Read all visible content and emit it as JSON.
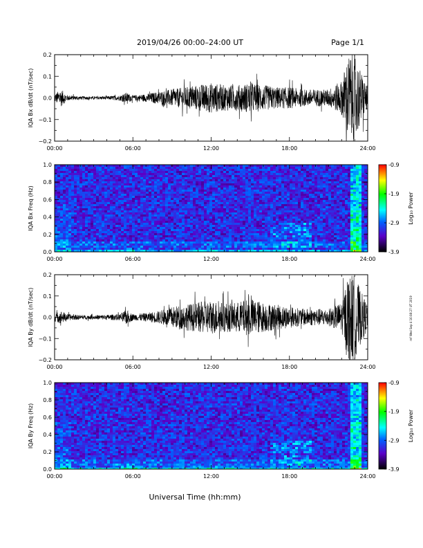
{
  "header": {
    "title": "2019/04/26  00:00–24:00 UT",
    "page": "Page 1/1"
  },
  "footer": {
    "xlabel": "Universal Time (hh:mm)"
  },
  "side_note": "mf Wed Sep 4 16:08:27 UT 2019",
  "colorbar": {
    "ticks": [
      "-0.9",
      "-1.9",
      "-2.9",
      "-3.9"
    ],
    "label": "Log₁₀ Power",
    "colors": [
      "#ff0000",
      "#ffff00",
      "#00ff00",
      "#00ffff",
      "#0060ff",
      "#5a00c8",
      "#000000"
    ]
  },
  "chart_data": [
    {
      "type": "line",
      "name": "bx-timeseries",
      "ylabel": "IQA Bx dB/dt (nT/sec)",
      "ylim": [
        -0.2,
        0.2
      ],
      "yticks": [
        "0.2",
        "0.1",
        "0.0",
        "−0.1",
        "−0.2"
      ],
      "xlim": [
        0,
        24
      ],
      "xticks": [
        "00:00",
        "06:00",
        "12:00",
        "18:00",
        "24:00"
      ],
      "envelope_hours": [
        0,
        0.5,
        1,
        2,
        3,
        4,
        5,
        5.5,
        6,
        7,
        8,
        9,
        10,
        11,
        12,
        13,
        14,
        15,
        16,
        17,
        18,
        19,
        20,
        21,
        22,
        22.5,
        23,
        23.5,
        24
      ],
      "envelope_amplitude": [
        0.02,
        0.04,
        0.012,
        0.008,
        0.007,
        0.008,
        0.012,
        0.025,
        0.012,
        0.018,
        0.03,
        0.04,
        0.05,
        0.06,
        0.07,
        0.06,
        0.06,
        0.07,
        0.06,
        0.05,
        0.05,
        0.04,
        0.04,
        0.04,
        0.08,
        0.2,
        0.2,
        0.12,
        0.05
      ]
    },
    {
      "type": "heatmap",
      "name": "bx-spectrogram",
      "ylabel": "IQA Bx Freq (Hz)",
      "ylim": [
        0,
        1
      ],
      "yticks": [
        "1.0",
        "0.8",
        "0.6",
        "0.4",
        "0.2",
        "0.0"
      ],
      "xlim": [
        0,
        24
      ],
      "xticks": [
        "00:00",
        "06:00",
        "12:00",
        "18:00",
        "24:00"
      ],
      "zlim": [
        -3.9,
        -0.9
      ]
    },
    {
      "type": "line",
      "name": "by-timeseries",
      "ylabel": "IQA By dB/dt (nT/sec)",
      "ylim": [
        -0.2,
        0.2
      ],
      "yticks": [
        "0.2",
        "0.1",
        "0.0",
        "−0.1",
        "−0.2"
      ],
      "xlim": [
        0,
        24
      ],
      "xticks": [
        "00:00",
        "06:00",
        "12:00",
        "18:00",
        "24:00"
      ],
      "envelope_hours": [
        0,
        0.5,
        1,
        2,
        3,
        4,
        5,
        5.5,
        6,
        7,
        8,
        9,
        10,
        11,
        12,
        13,
        14,
        15,
        16,
        17,
        18,
        19,
        20,
        21,
        22,
        22.5,
        23,
        23.5,
        24
      ],
      "envelope_amplitude": [
        0.02,
        0.03,
        0.015,
        0.01,
        0.01,
        0.012,
        0.015,
        0.035,
        0.015,
        0.02,
        0.03,
        0.05,
        0.06,
        0.07,
        0.08,
        0.07,
        0.07,
        0.09,
        0.07,
        0.06,
        0.05,
        0.04,
        0.04,
        0.04,
        0.07,
        0.2,
        0.2,
        0.12,
        0.06
      ]
    },
    {
      "type": "heatmap",
      "name": "by-spectrogram",
      "ylabel": "IQA By Freq (Hz)",
      "ylim": [
        0,
        1
      ],
      "yticks": [
        "1.0",
        "0.8",
        "0.6",
        "0.4",
        "0.2",
        "0.0"
      ],
      "xlim": [
        0,
        24
      ],
      "xticks": [
        "00:00",
        "06:00",
        "12:00",
        "18:00",
        "24:00"
      ],
      "zlim": [
        -3.9,
        -0.9
      ]
    }
  ]
}
